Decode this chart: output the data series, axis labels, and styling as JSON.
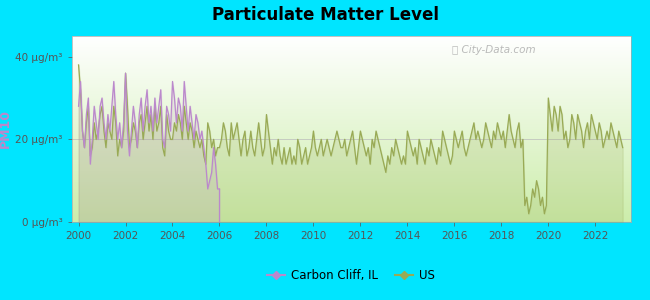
{
  "title": "Particulate Matter Level",
  "ylabel": "PM10",
  "bg_outer": "#00e5ff",
  "bg_inner_top": "#ffffff",
  "bg_inner_bottom": "#cceeaa",
  "watermark": "ⓘ City-Data.com",
  "yticks": [
    0,
    20,
    40
  ],
  "ytick_labels": [
    "0 μg/m³",
    "20 μg/m³",
    "40 μg/m³"
  ],
  "xlim": [
    1999.7,
    2023.5
  ],
  "ylim": [
    0,
    45
  ],
  "carbon_cliff_color": "#bb88cc",
  "us_color": "#99aa55",
  "legend_labels": [
    "Carbon Cliff, IL",
    "US"
  ],
  "carbon_cliff_x": [
    2000.0,
    2000.083,
    2000.167,
    2000.25,
    2000.333,
    2000.417,
    2000.5,
    2000.583,
    2000.667,
    2000.75,
    2000.833,
    2000.917,
    2001.0,
    2001.083,
    2001.167,
    2001.25,
    2001.333,
    2001.417,
    2001.5,
    2001.583,
    2001.667,
    2001.75,
    2001.833,
    2001.917,
    2002.0,
    2002.083,
    2002.167,
    2002.25,
    2002.333,
    2002.417,
    2002.5,
    2002.583,
    2002.667,
    2002.75,
    2002.833,
    2002.917,
    2003.0,
    2003.083,
    2003.167,
    2003.25,
    2003.333,
    2003.417,
    2003.5,
    2003.583,
    2003.667,
    2003.75,
    2003.833,
    2003.917,
    2004.0,
    2004.083,
    2004.167,
    2004.25,
    2004.333,
    2004.417,
    2004.5,
    2004.583,
    2004.667,
    2004.75,
    2004.833,
    2004.917,
    2005.0,
    2005.083,
    2005.167,
    2005.25,
    2005.333,
    2005.417,
    2005.5,
    2005.583,
    2005.667,
    2005.75,
    2005.833,
    2005.917,
    2006.0
  ],
  "carbon_cliff_y": [
    28,
    34,
    22,
    18,
    26,
    30,
    14,
    20,
    28,
    24,
    20,
    28,
    30,
    24,
    20,
    26,
    22,
    28,
    34,
    26,
    20,
    24,
    18,
    24,
    36,
    22,
    16,
    22,
    28,
    24,
    18,
    26,
    30,
    22,
    28,
    32,
    24,
    28,
    22,
    30,
    24,
    28,
    32,
    20,
    18,
    28,
    26,
    22,
    34,
    30,
    24,
    30,
    28,
    22,
    34,
    28,
    22,
    28,
    24,
    20,
    26,
    24,
    20,
    22,
    18,
    14,
    8,
    10,
    12,
    18,
    14,
    8,
    8
  ],
  "us_x": [
    2000.0,
    2000.083,
    2000.167,
    2000.25,
    2000.333,
    2000.417,
    2000.5,
    2000.583,
    2000.667,
    2000.75,
    2000.833,
    2000.917,
    2001.0,
    2001.083,
    2001.167,
    2001.25,
    2001.333,
    2001.417,
    2001.5,
    2001.583,
    2001.667,
    2001.75,
    2001.833,
    2001.917,
    2002.0,
    2002.083,
    2002.167,
    2002.25,
    2002.333,
    2002.417,
    2002.5,
    2002.583,
    2002.667,
    2002.75,
    2002.833,
    2002.917,
    2003.0,
    2003.083,
    2003.167,
    2003.25,
    2003.333,
    2003.417,
    2003.5,
    2003.583,
    2003.667,
    2003.75,
    2003.833,
    2003.917,
    2004.0,
    2004.083,
    2004.167,
    2004.25,
    2004.333,
    2004.417,
    2004.5,
    2004.583,
    2004.667,
    2004.75,
    2004.833,
    2004.917,
    2005.0,
    2005.083,
    2005.167,
    2005.25,
    2005.333,
    2005.417,
    2005.5,
    2005.583,
    2005.667,
    2005.75,
    2005.833,
    2005.917,
    2006.0,
    2006.083,
    2006.167,
    2006.25,
    2006.333,
    2006.417,
    2006.5,
    2006.583,
    2006.667,
    2006.75,
    2006.833,
    2006.917,
    2007.0,
    2007.083,
    2007.167,
    2007.25,
    2007.333,
    2007.417,
    2007.5,
    2007.583,
    2007.667,
    2007.75,
    2007.833,
    2007.917,
    2008.0,
    2008.083,
    2008.167,
    2008.25,
    2008.333,
    2008.417,
    2008.5,
    2008.583,
    2008.667,
    2008.75,
    2008.833,
    2008.917,
    2009.0,
    2009.083,
    2009.167,
    2009.25,
    2009.333,
    2009.417,
    2009.5,
    2009.583,
    2009.667,
    2009.75,
    2009.833,
    2009.917,
    2010.0,
    2010.083,
    2010.167,
    2010.25,
    2010.333,
    2010.417,
    2010.5,
    2010.583,
    2010.667,
    2010.75,
    2010.833,
    2010.917,
    2011.0,
    2011.083,
    2011.167,
    2011.25,
    2011.333,
    2011.417,
    2011.5,
    2011.583,
    2011.667,
    2011.75,
    2011.833,
    2011.917,
    2012.0,
    2012.083,
    2012.167,
    2012.25,
    2012.333,
    2012.417,
    2012.5,
    2012.583,
    2012.667,
    2012.75,
    2012.833,
    2012.917,
    2013.0,
    2013.083,
    2013.167,
    2013.25,
    2013.333,
    2013.417,
    2013.5,
    2013.583,
    2013.667,
    2013.75,
    2013.833,
    2013.917,
    2014.0,
    2014.083,
    2014.167,
    2014.25,
    2014.333,
    2014.417,
    2014.5,
    2014.583,
    2014.667,
    2014.75,
    2014.833,
    2014.917,
    2015.0,
    2015.083,
    2015.167,
    2015.25,
    2015.333,
    2015.417,
    2015.5,
    2015.583,
    2015.667,
    2015.75,
    2015.833,
    2015.917,
    2016.0,
    2016.083,
    2016.167,
    2016.25,
    2016.333,
    2016.417,
    2016.5,
    2016.583,
    2016.667,
    2016.75,
    2016.833,
    2016.917,
    2017.0,
    2017.083,
    2017.167,
    2017.25,
    2017.333,
    2017.417,
    2017.5,
    2017.583,
    2017.667,
    2017.75,
    2017.833,
    2017.917,
    2018.0,
    2018.083,
    2018.167,
    2018.25,
    2018.333,
    2018.417,
    2018.5,
    2018.583,
    2018.667,
    2018.75,
    2018.833,
    2018.917,
    2019.0,
    2019.083,
    2019.167,
    2019.25,
    2019.333,
    2019.417,
    2019.5,
    2019.583,
    2019.667,
    2019.75,
    2019.833,
    2019.917,
    2020.0,
    2020.083,
    2020.167,
    2020.25,
    2020.333,
    2020.417,
    2020.5,
    2020.583,
    2020.667,
    2020.75,
    2020.833,
    2020.917,
    2021.0,
    2021.083,
    2021.167,
    2021.25,
    2021.333,
    2021.417,
    2021.5,
    2021.583,
    2021.667,
    2021.75,
    2021.833,
    2021.917,
    2022.0,
    2022.083,
    2022.167,
    2022.25,
    2022.333,
    2022.417,
    2022.5,
    2022.583,
    2022.667,
    2022.75,
    2022.833,
    2022.917,
    2023.0,
    2023.083,
    2023.167
  ],
  "us_y": [
    38,
    32,
    22,
    18,
    24,
    28,
    16,
    18,
    24,
    20,
    22,
    26,
    28,
    22,
    18,
    24,
    22,
    20,
    28,
    24,
    16,
    20,
    18,
    22,
    36,
    28,
    18,
    20,
    24,
    22,
    18,
    24,
    26,
    20,
    24,
    28,
    22,
    26,
    20,
    28,
    22,
    24,
    28,
    18,
    16,
    26,
    22,
    20,
    20,
    24,
    22,
    26,
    24,
    20,
    28,
    24,
    20,
    24,
    22,
    18,
    22,
    20,
    18,
    20,
    16,
    14,
    24,
    22,
    18,
    20,
    16,
    18,
    18,
    20,
    24,
    22,
    18,
    16,
    24,
    20,
    22,
    24,
    20,
    16,
    20,
    22,
    16,
    18,
    22,
    18,
    16,
    20,
    24,
    20,
    16,
    18,
    26,
    22,
    18,
    14,
    18,
    16,
    20,
    16,
    14,
    18,
    14,
    16,
    18,
    14,
    16,
    14,
    20,
    18,
    14,
    16,
    18,
    14,
    16,
    18,
    22,
    18,
    16,
    18,
    20,
    16,
    18,
    20,
    18,
    16,
    18,
    20,
    22,
    20,
    18,
    18,
    20,
    16,
    18,
    20,
    22,
    18,
    14,
    18,
    22,
    20,
    18,
    16,
    18,
    14,
    20,
    18,
    22,
    20,
    18,
    16,
    14,
    12,
    16,
    14,
    18,
    16,
    20,
    18,
    16,
    14,
    16,
    14,
    22,
    20,
    18,
    16,
    18,
    14,
    20,
    18,
    16,
    14,
    18,
    16,
    20,
    18,
    16,
    14,
    18,
    16,
    22,
    20,
    18,
    16,
    14,
    16,
    22,
    20,
    18,
    20,
    22,
    18,
    16,
    18,
    20,
    22,
    24,
    20,
    22,
    20,
    18,
    20,
    24,
    22,
    20,
    18,
    22,
    20,
    24,
    22,
    20,
    22,
    18,
    22,
    26,
    22,
    20,
    18,
    22,
    24,
    18,
    20,
    4,
    6,
    2,
    4,
    8,
    6,
    10,
    8,
    4,
    6,
    2,
    4,
    30,
    26,
    22,
    28,
    26,
    22,
    28,
    26,
    20,
    22,
    18,
    20,
    26,
    24,
    20,
    26,
    24,
    22,
    18,
    22,
    24,
    20,
    26,
    24,
    22,
    20,
    24,
    22,
    18,
    20,
    22,
    20,
    24,
    22,
    20,
    18,
    22,
    20,
    18
  ]
}
